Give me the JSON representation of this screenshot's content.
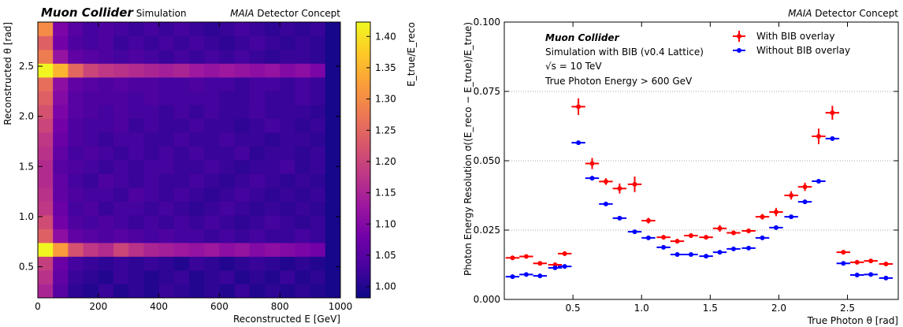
{
  "chart_data": [
    {
      "type": "heatmap",
      "title": "Muon Collider",
      "subtitle": "Simulation",
      "concept": [
        "MAIA",
        "Detector Concept"
      ],
      "xlabel": "Reconstructed E [GeV]",
      "ylabel": "Reconstructed θ [rad]",
      "zlabel": "E_true/E_reco",
      "xbins": [
        0,
        50,
        100,
        150,
        200,
        250,
        300,
        350,
        400,
        450,
        500,
        550,
        600,
        650,
        700,
        750,
        800,
        850,
        900,
        950,
        1000
      ],
      "ybins": [
        0.19,
        0.328,
        0.465,
        0.603,
        0.74,
        0.878,
        1.015,
        1.153,
        1.29,
        1.428,
        1.565,
        1.703,
        1.84,
        1.978,
        2.115,
        2.253,
        2.39,
        2.528,
        2.665,
        2.803,
        2.94
      ],
      "z": [
        [
          1.15,
          1.05,
          1.01,
          1.0,
          1.02,
          1.0,
          1.01,
          1.0,
          1.02,
          1.01,
          1.0,
          1.01,
          1.0,
          1.02,
          1.0,
          1.01,
          1.0,
          1.01,
          1.0,
          0.99
        ],
        [
          1.17,
          1.06,
          1.02,
          1.01,
          1.0,
          1.02,
          1.01,
          1.0,
          1.01,
          1.02,
          1.0,
          1.01,
          1.02,
          1.0,
          1.01,
          1.0,
          1.02,
          1.0,
          1.01,
          0.99
        ],
        [
          1.19,
          1.07,
          1.03,
          1.02,
          1.01,
          1.02,
          1.01,
          1.02,
          1.01,
          1.0,
          1.02,
          1.01,
          1.0,
          1.01,
          1.02,
          1.01,
          1.0,
          1.01,
          1.0,
          0.99
        ],
        [
          1.42,
          1.32,
          1.22,
          1.18,
          1.16,
          1.2,
          1.17,
          1.15,
          1.14,
          1.13,
          1.12,
          1.13,
          1.11,
          1.12,
          1.1,
          1.11,
          1.1,
          1.09,
          1.08,
          0.99
        ],
        [
          1.24,
          1.11,
          1.06,
          1.05,
          1.04,
          1.05,
          1.04,
          1.03,
          1.04,
          1.03,
          1.03,
          1.02,
          1.03,
          1.02,
          1.03,
          1.02,
          1.02,
          1.03,
          1.02,
          0.99
        ],
        [
          1.21,
          1.08,
          1.04,
          1.03,
          1.04,
          1.03,
          1.02,
          1.03,
          1.02,
          1.03,
          1.02,
          1.03,
          1.02,
          1.01,
          1.02,
          1.03,
          1.02,
          1.01,
          1.02,
          0.99
        ],
        [
          1.18,
          1.07,
          1.03,
          1.04,
          1.02,
          1.03,
          1.03,
          1.02,
          1.03,
          1.02,
          1.01,
          1.02,
          1.03,
          1.02,
          1.01,
          1.02,
          1.01,
          1.02,
          1.01,
          0.99
        ],
        [
          1.17,
          1.06,
          1.04,
          1.03,
          1.03,
          1.02,
          1.04,
          1.03,
          1.02,
          1.03,
          1.02,
          1.01,
          1.02,
          1.03,
          1.02,
          1.01,
          1.02,
          1.01,
          1.02,
          0.99
        ],
        [
          1.16,
          1.06,
          1.03,
          1.02,
          1.04,
          1.03,
          1.02,
          1.03,
          1.02,
          1.02,
          1.03,
          1.02,
          1.01,
          1.02,
          1.03,
          1.02,
          1.01,
          1.02,
          1.01,
          0.99
        ],
        [
          1.16,
          1.05,
          1.04,
          1.03,
          1.02,
          1.03,
          1.02,
          1.03,
          1.03,
          1.02,
          1.02,
          1.03,
          1.02,
          1.01,
          1.02,
          1.02,
          1.03,
          1.01,
          1.02,
          0.99
        ],
        [
          1.17,
          1.06,
          1.03,
          1.04,
          1.03,
          1.02,
          1.03,
          1.02,
          1.03,
          1.02,
          1.03,
          1.02,
          1.02,
          1.03,
          1.01,
          1.02,
          1.02,
          1.01,
          1.02,
          0.99
        ],
        [
          1.18,
          1.07,
          1.04,
          1.03,
          1.02,
          1.03,
          1.03,
          1.02,
          1.02,
          1.03,
          1.02,
          1.02,
          1.03,
          1.02,
          1.02,
          1.01,
          1.02,
          1.02,
          1.01,
          0.99
        ],
        [
          1.2,
          1.08,
          1.04,
          1.03,
          1.03,
          1.04,
          1.02,
          1.03,
          1.02,
          1.02,
          1.03,
          1.02,
          1.02,
          1.01,
          1.02,
          1.03,
          1.02,
          1.01,
          1.02,
          0.99
        ],
        [
          1.22,
          1.09,
          1.05,
          1.04,
          1.03,
          1.04,
          1.03,
          1.03,
          1.02,
          1.03,
          1.02,
          1.03,
          1.02,
          1.02,
          1.03,
          1.02,
          1.02,
          1.02,
          1.01,
          0.99
        ],
        [
          1.24,
          1.1,
          1.05,
          1.04,
          1.04,
          1.04,
          1.03,
          1.04,
          1.03,
          1.03,
          1.03,
          1.03,
          1.02,
          1.02,
          1.03,
          1.02,
          1.02,
          1.03,
          1.02,
          0.99
        ],
        [
          1.26,
          1.11,
          1.06,
          1.05,
          1.04,
          1.05,
          1.04,
          1.04,
          1.03,
          1.03,
          1.04,
          1.03,
          1.03,
          1.02,
          1.03,
          1.03,
          1.02,
          1.03,
          1.02,
          0.99
        ],
        [
          1.42,
          1.35,
          1.25,
          1.2,
          1.18,
          1.17,
          1.16,
          1.15,
          1.14,
          1.15,
          1.13,
          1.12,
          1.13,
          1.12,
          1.11,
          1.12,
          1.1,
          1.11,
          1.09,
          0.99
        ],
        [
          1.28,
          1.12,
          1.06,
          1.05,
          1.04,
          1.03,
          1.04,
          1.03,
          1.02,
          1.03,
          1.02,
          1.03,
          1.02,
          1.03,
          1.02,
          1.01,
          1.02,
          1.02,
          1.01,
          0.99
        ],
        [
          1.24,
          1.08,
          1.04,
          1.03,
          1.04,
          1.02,
          1.03,
          1.02,
          1.03,
          1.02,
          1.03,
          1.02,
          1.01,
          1.02,
          1.03,
          1.02,
          1.01,
          1.02,
          1.01,
          0.99
        ],
        [
          1.3,
          1.09,
          1.05,
          1.03,
          1.04,
          1.03,
          1.02,
          1.03,
          1.02,
          1.03,
          1.02,
          1.01,
          1.02,
          1.03,
          1.02,
          1.01,
          1.02,
          1.01,
          1.02,
          0.99
        ]
      ],
      "xlim": [
        0,
        1000
      ],
      "ylim": [
        0.19,
        2.94
      ],
      "xticks": [
        0,
        200,
        400,
        600,
        800,
        1000
      ],
      "yticks": [
        0.5,
        {
          "value": 1,
          "label": "1.0"
        },
        1.5,
        {
          "value": 2,
          "label": "2.0"
        },
        2.5
      ],
      "zlim": [
        0.982,
        1.423
      ],
      "zticks": [
        {
          "value": 1,
          "label": "1.00"
        },
        1.05,
        {
          "value": 1.1,
          "label": "1.10"
        },
        1.15,
        {
          "value": 1.2,
          "label": "1.20"
        },
        1.25,
        {
          "value": 1.3,
          "label": "1.30"
        },
        1.35,
        {
          "value": 1.4,
          "label": "1.40"
        }
      ],
      "colormap": [
        "#0d0887",
        "#46039f",
        "#7201a8",
        "#9c179e",
        "#bd3786",
        "#d8576b",
        "#ed7953",
        "#fb9f3a",
        "#fdca26",
        "#f0f921"
      ]
    },
    {
      "type": "errorbar",
      "concept": [
        "MAIA",
        "Detector Concept"
      ],
      "annotations": [
        "Muon Collider",
        "Simulation with BIB (v0.4 Lattice)",
        "√s = 10 TeV",
        "True Photon Energy  > 600 GeV"
      ],
      "xlabel": "True Photon θ [rad]",
      "ylabel": "Photon Energy Resolution σ((E_reco − E_true)/E_true)",
      "x": [
        0.06,
        0.16,
        0.26,
        0.37,
        0.44,
        0.54,
        0.64,
        0.74,
        0.84,
        0.95,
        1.05,
        1.16,
        1.26,
        1.36,
        1.47,
        1.57,
        1.67,
        1.78,
        1.88,
        1.98,
        2.09,
        2.19,
        2.29,
        2.39,
        2.47,
        2.57,
        2.67,
        2.78
      ],
      "series": [
        {
          "name": "With BIB overlay",
          "color": "#ff0000",
          "xerr": 0.05,
          "values": [
            0.015,
            0.0155,
            0.013,
            0.0125,
            0.0165,
            0.0695,
            0.049,
            0.0425,
            0.04,
            0.0415,
            0.0284,
            0.0224,
            0.021,
            0.023,
            0.0224,
            0.0256,
            0.024,
            0.0247,
            0.0298,
            0.0315,
            0.0375,
            0.0406,
            0.0588,
            0.0673,
            0.017,
            0.0134,
            0.0139,
            0.0128
          ],
          "yerr": [
            0.0005,
            0.0005,
            0.0005,
            0.0005,
            0.0008,
            0.003,
            0.002,
            0.0012,
            0.0018,
            0.0028,
            0.001,
            0.0008,
            0.0008,
            0.0008,
            0.0008,
            0.0012,
            0.0008,
            0.0008,
            0.001,
            0.0015,
            0.0015,
            0.0015,
            0.0028,
            0.0025,
            0.0008,
            0.0005,
            0.0005,
            0.0005
          ]
        },
        {
          "name": "Without BIB overlay",
          "color": "#0000ff",
          "xerr": 0.05,
          "values": [
            0.0082,
            0.009,
            0.0085,
            0.0114,
            0.0119,
            0.0565,
            0.0437,
            0.0344,
            0.0293,
            0.0244,
            0.0222,
            0.0188,
            0.0162,
            0.0162,
            0.0156,
            0.017,
            0.0182,
            0.0185,
            0.0222,
            0.0259,
            0.0298,
            0.0352,
            0.0426,
            0.058,
            0.013,
            0.0088,
            0.009,
            0.0077
          ]
        }
      ],
      "xlim": [
        0,
        2.87
      ],
      "ylim": [
        0,
        0.1
      ],
      "xticks": [
        0.5,
        {
          "value": 1,
          "label": "1.0"
        },
        1.5,
        {
          "value": 2,
          "label": "2.0"
        },
        2.5
      ],
      "yticks": [
        {
          "value": 0,
          "label": "0.000"
        },
        0.025,
        {
          "value": 0.05,
          "label": "0.050"
        },
        0.075,
        {
          "value": 0.1,
          "label": "0.100"
        }
      ],
      "grid": true,
      "legend": "upper right"
    }
  ]
}
